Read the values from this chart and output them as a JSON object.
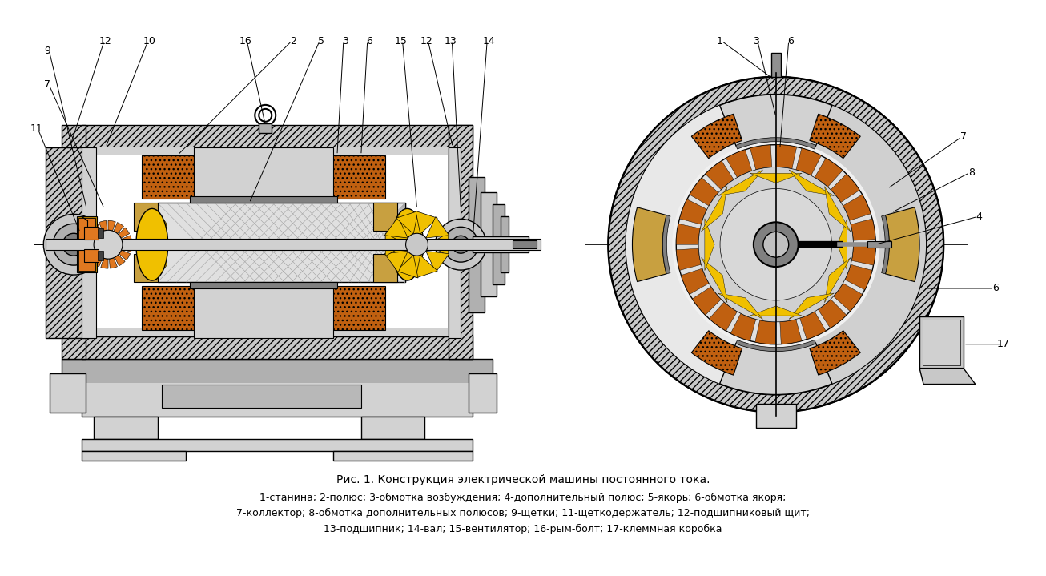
{
  "title": "Рис. 1. Конструкция электрической машины постоянного тока.",
  "caption_lines": [
    "1-станина; 2-полюс; 3-обмотка возбуждения; 4-дополнительный полюс; 5-якорь; 6-обмотка якоря;",
    "7-коллектор; 8-обмотка дополнительных полюсов; 9-щетки; 11-щеткодержатель; 12-подшипниковый щит;",
    "13-подшипник; 14-вал; 15-вентилятор; 16-рым-болт; 17-клеммная коробка"
  ],
  "bg_color": "#ffffff",
  "lg": "#d2d2d2",
  "mg": "#b0b0b0",
  "dg": "#808080",
  "orange": "#e07820",
  "yellow": "#f0c000",
  "br_orange": "#c06010",
  "dk_orange": "#a04800",
  "steel": "#c8c8c8",
  "dark_steel": "#909090"
}
